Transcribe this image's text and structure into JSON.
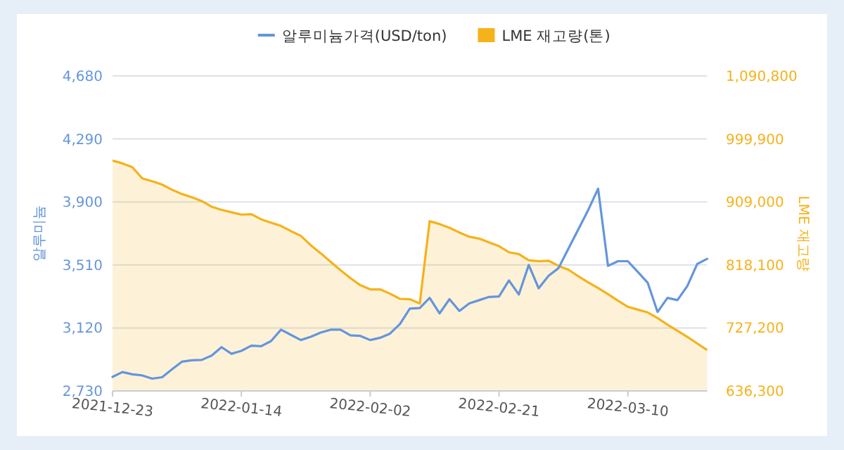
{
  "chart_data": {
    "type": "line",
    "categories": [
      "2021-12-23",
      null,
      null,
      null,
      null,
      null,
      null,
      null,
      null,
      null,
      null,
      null,
      null,
      "2022-01-14",
      null,
      null,
      null,
      null,
      null,
      null,
      null,
      null,
      null,
      null,
      null,
      null,
      "2022-02-02",
      null,
      null,
      null,
      null,
      null,
      null,
      null,
      null,
      null,
      null,
      null,
      null,
      "2022-02-21",
      null,
      null,
      null,
      null,
      null,
      null,
      null,
      null,
      null,
      null,
      null,
      null,
      "2022-03-10",
      null,
      null,
      null,
      null,
      null,
      null,
      null,
      null
    ],
    "series": [
      {
        "name": "알루미늄가격(USD/ton)",
        "color": "#6495dc",
        "values": [
          2817,
          2847,
          2833,
          2826,
          2806,
          2815,
          2864,
          2911,
          2920,
          2922,
          2949,
          3001,
          2960,
          2978,
          3010,
          3007,
          3039,
          3109,
          3077,
          3045,
          3065,
          3091,
          3109,
          3109,
          3074,
          3071,
          3045,
          3059,
          3085,
          3144,
          3240,
          3243,
          3306,
          3210,
          3298,
          3225,
          3272,
          3292,
          3312,
          3315,
          3414,
          3327,
          3510,
          3365,
          3443,
          3490,
          3610,
          3730,
          3850,
          3982,
          3504,
          3533,
          3533,
          3467,
          3400,
          3219,
          3306,
          3292,
          3379,
          3516,
          3548
        ]
      },
      {
        "name": "LME 재고량(톤)",
        "type": "area",
        "axis": "y2",
        "color": "#f5b21a",
        "values": [
          968700,
          964600,
          959200,
          942900,
          938800,
          934100,
          926600,
          920500,
          915800,
          910300,
          902200,
          897500,
          894100,
          890700,
          891400,
          883900,
          879100,
          874400,
          866900,
          860100,
          846600,
          835000,
          822800,
          810600,
          799100,
          788900,
          782800,
          782800,
          776700,
          769200,
          768600,
          762500,
          881200,
          877100,
          871700,
          864900,
          858800,
          856100,
          850600,
          845200,
          836400,
          833700,
          824900,
          823500,
          824200,
          816700,
          811300,
          801800,
          793000,
          784800,
          776000,
          766500,
          757700,
          753600,
          749600,
          741400,
          731900,
          723100,
          714300,
          704800,
          695300
        ]
      }
    ],
    "ylabel": "알루미늄",
    "y2label": "LME 재고량",
    "ylim": [
      2730,
      4680
    ],
    "yticks": [
      {
        "value": 2730,
        "label": "2,730"
      },
      {
        "value": 3120,
        "label": "3,120"
      },
      {
        "value": 3510,
        "label": "3,510"
      },
      {
        "value": 3900,
        "label": "3,900"
      },
      {
        "value": 4290,
        "label": "4,290"
      },
      {
        "value": 4680,
        "label": "4,680"
      }
    ],
    "y2lim": [
      636300,
      1090800
    ],
    "y2ticks": [
      {
        "value": 636300,
        "label": "636,300"
      },
      {
        "value": 727200,
        "label": "727,200"
      },
      {
        "value": 818100,
        "label": "818,100"
      },
      {
        "value": 909000,
        "label": "909,000"
      },
      {
        "value": 999900,
        "label": "999,900"
      },
      {
        "value": 1090800,
        "label": "1,090,800"
      }
    ],
    "grid": "y",
    "legend": "top"
  }
}
